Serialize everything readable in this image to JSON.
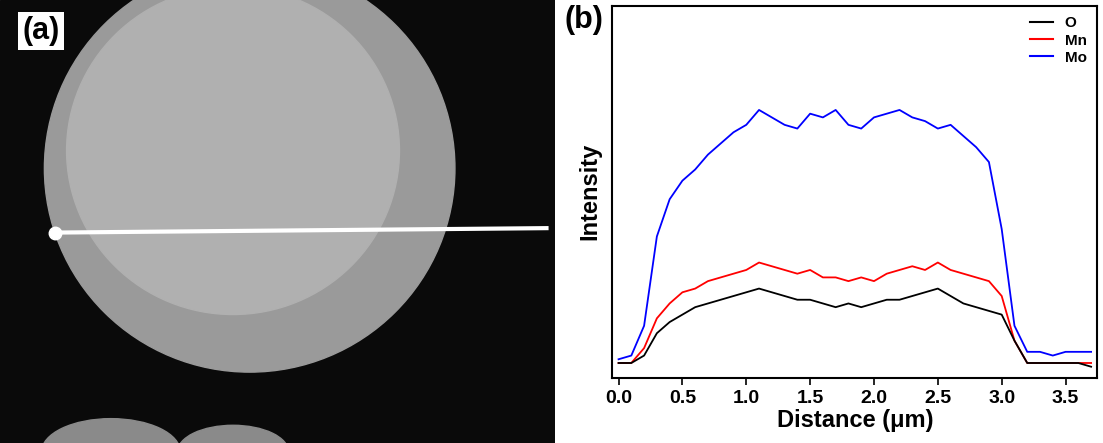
{
  "image": {
    "label": "(a)"
  },
  "chart_data": {
    "type": "line",
    "panel_label": "(b)",
    "x_label": "Distance (μm)",
    "y_label": "Intensity",
    "x": [
      0.0,
      0.1,
      0.2,
      0.3,
      0.4,
      0.5,
      0.6,
      0.7,
      0.8,
      0.9,
      1.0,
      1.1,
      1.2,
      1.3,
      1.4,
      1.5,
      1.6,
      1.7,
      1.8,
      1.9,
      2.0,
      2.1,
      2.2,
      2.3,
      2.4,
      2.5,
      2.6,
      2.7,
      2.8,
      2.9,
      3.0,
      3.1,
      3.2,
      3.3,
      3.4,
      3.5,
      3.6,
      3.7
    ],
    "series": [
      {
        "name": "O",
        "color": "#000000",
        "values": [
          4,
          4,
          6,
          12,
          15,
          17,
          19,
          20,
          21,
          22,
          23,
          24,
          23,
          22,
          21,
          21,
          20,
          19,
          20,
          19,
          20,
          21,
          21,
          22,
          23,
          24,
          22,
          20,
          19,
          18,
          17,
          10,
          4,
          4,
          4,
          4,
          4,
          3
        ]
      },
      {
        "name": "Mn",
        "color": "#ff0000",
        "values": [
          4,
          4,
          8,
          16,
          20,
          23,
          24,
          26,
          27,
          28,
          29,
          31,
          30,
          29,
          28,
          29,
          27,
          27,
          26,
          27,
          26,
          28,
          29,
          30,
          29,
          31,
          29,
          28,
          27,
          26,
          22,
          10,
          4,
          4,
          4,
          4,
          4,
          4
        ]
      },
      {
        "name": "Mo",
        "color": "#0000ff",
        "values": [
          5,
          6,
          14,
          38,
          48,
          53,
          56,
          60,
          63,
          66,
          68,
          72,
          70,
          68,
          67,
          71,
          70,
          72,
          68,
          67,
          70,
          71,
          72,
          70,
          69,
          67,
          68,
          65,
          62,
          58,
          40,
          14,
          7,
          7,
          6,
          7,
          7,
          7
        ]
      }
    ],
    "xlim": [
      -0.05,
      3.75
    ],
    "xticks": [
      {
        "value": 0.0,
        "label": "0.0"
      },
      {
        "value": 0.5,
        "label": "0.5"
      },
      {
        "value": 1.0,
        "label": "1.0"
      },
      {
        "value": 1.5,
        "label": "1.5"
      },
      {
        "value": 2.0,
        "label": "2.0"
      },
      {
        "value": 2.5,
        "label": "2.5"
      },
      {
        "value": 3.0,
        "label": "3.0"
      },
      {
        "value": 3.5,
        "label": "3.5"
      }
    ],
    "ylim": [
      0,
      100
    ],
    "yticks": [],
    "tick_labels": "x",
    "legend": "upper right",
    "grid": false
  }
}
